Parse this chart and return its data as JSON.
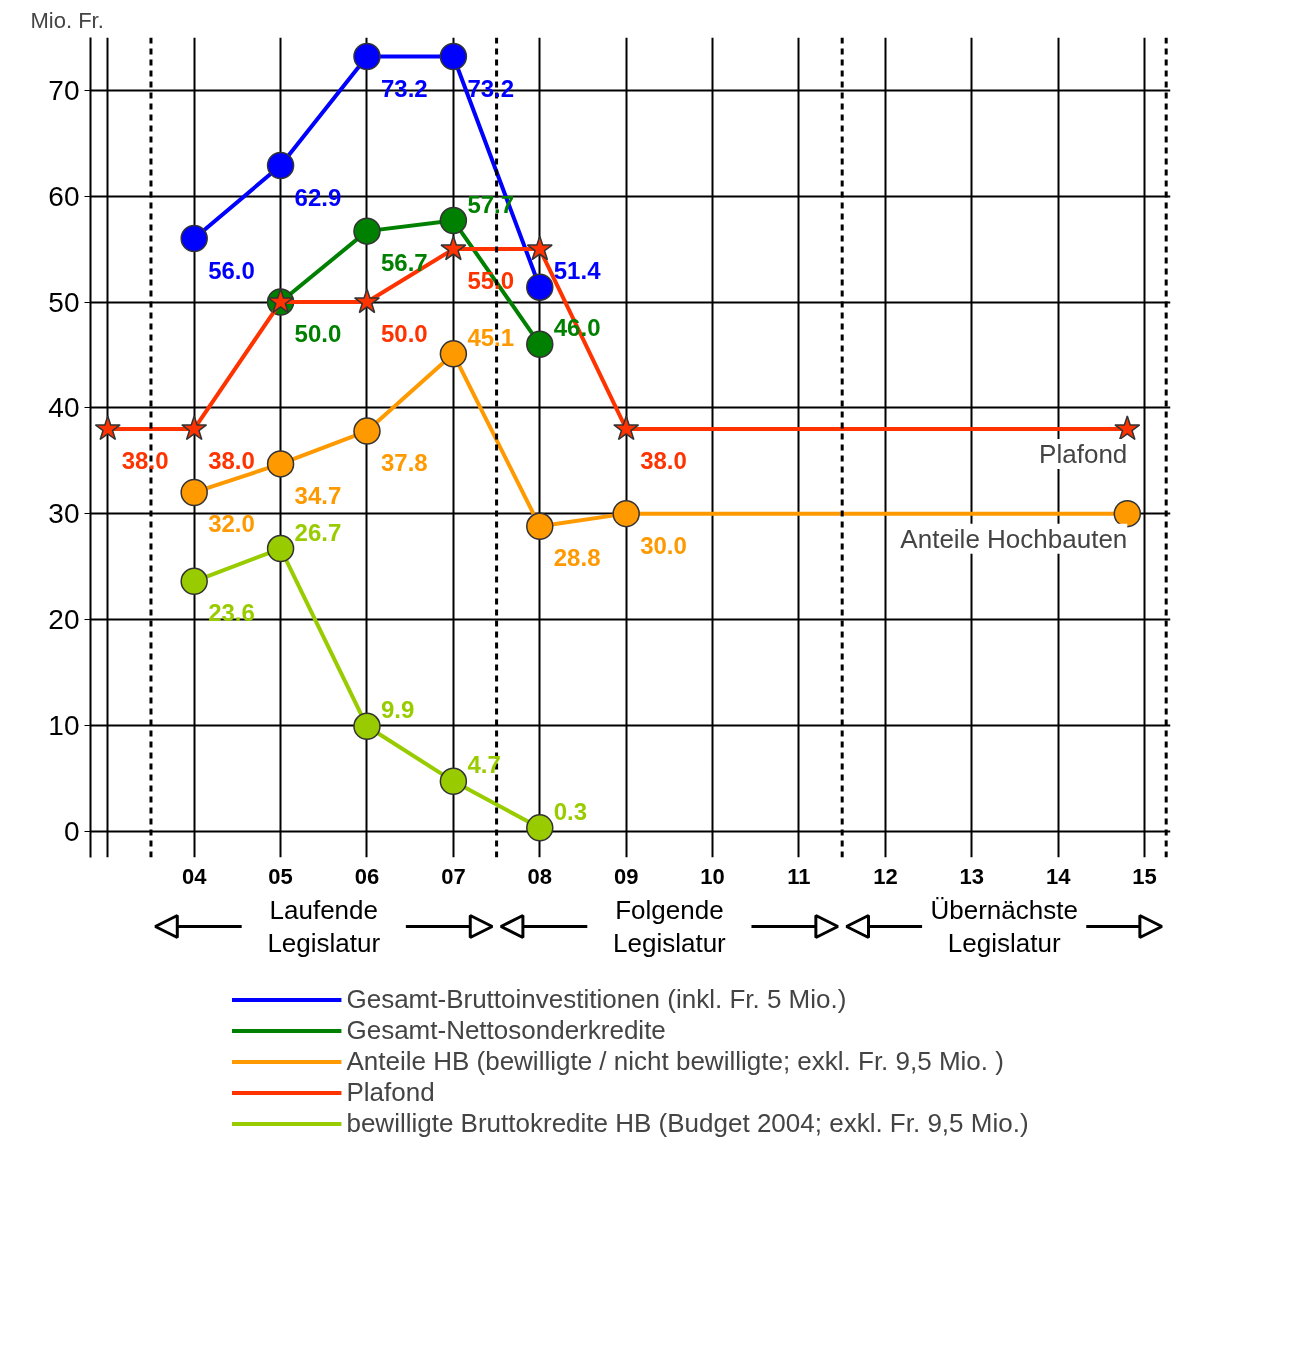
{
  "chart_data": {
    "type": "line",
    "ylabel": "Mio. Fr.",
    "xlim": [
      2.8,
      15.3
    ],
    "ylim": [
      -2.5,
      75
    ],
    "xticks": [
      {
        "value": 3,
        "label": null
      },
      {
        "value": 4,
        "label": "04"
      },
      {
        "value": 5,
        "label": "05"
      },
      {
        "value": 6,
        "label": "06"
      },
      {
        "value": 7,
        "label": "07"
      },
      {
        "value": 8,
        "label": "08"
      },
      {
        "value": 9,
        "label": "09"
      },
      {
        "value": 10,
        "label": "10"
      },
      {
        "value": 11,
        "label": "11"
      },
      {
        "value": 12,
        "label": "12"
      },
      {
        "value": 13,
        "label": "13"
      },
      {
        "value": 14,
        "label": "14"
      },
      {
        "value": 15,
        "label": "15"
      }
    ],
    "yticks": [
      0,
      10,
      20,
      30,
      40,
      50,
      60,
      70
    ],
    "grid": true,
    "legend": "bottom",
    "marker": "circle",
    "line_style": "solid",
    "series": [
      {
        "name": "Gesamt-Bruttoinvestitionen (inkl. Fr. 5 Mio.)",
        "color": "#0000ff",
        "x": [
          4,
          5,
          6,
          7,
          8
        ],
        "values": [
          56.0,
          62.9,
          73.2,
          73.2,
          51.4
        ],
        "value_labels": [
          "56.0",
          "62.9",
          "73.2",
          "73.2",
          "51.4"
        ]
      },
      {
        "name": "Gesamt-Nettosonderkredite",
        "color": "#008000",
        "x": [
          5,
          6,
          7,
          8
        ],
        "values": [
          50.0,
          56.7,
          57.7,
          46.0
        ],
        "value_labels": [
          "50.0",
          "56.7",
          "57.7",
          "46.0"
        ]
      },
      {
        "name": "Anteile HB (bewilligte / nicht bewilligte; exkl. Fr. 9,5 Mio. )",
        "color": "#ff9900",
        "x": [
          4,
          5,
          6,
          7,
          8,
          9,
          14.8
        ],
        "values": [
          32.0,
          34.7,
          37.8,
          45.1,
          28.8,
          30.0,
          30.0
        ],
        "value_labels": [
          "32.0",
          "34.7",
          "37.8",
          "45.1",
          "28.8",
          "30.0",
          null
        ]
      },
      {
        "name": "Plafond",
        "color": "#ff3300",
        "marker": "star",
        "x": [
          3,
          4,
          5,
          6,
          7,
          8,
          9,
          14.8
        ],
        "values": [
          38.0,
          38.0,
          50.0,
          50.0,
          55.0,
          55.0,
          38.0,
          38.0
        ],
        "value_labels": [
          "38.0",
          "38.0",
          null,
          "50.0",
          "55.0",
          null,
          "38.0",
          null
        ]
      },
      {
        "name": "bewilligte Bruttokredite HB (Budget 2004; exkl. Fr. 9,5 Mio.)",
        "color": "#99cc00",
        "x": [
          4,
          5,
          6,
          7,
          8
        ],
        "values": [
          23.6,
          26.7,
          9.9,
          4.7,
          0.3
        ],
        "value_labels": [
          "23.6",
          "26.7",
          "9.9",
          "4.7",
          "0.3"
        ]
      }
    ],
    "ref_lines": [
      {
        "axis": "x",
        "value": 3.5,
        "color": "#000000",
        "line_style": "dashed"
      },
      {
        "axis": "x",
        "value": 7.5,
        "color": "#000000",
        "line_style": "dashed"
      },
      {
        "axis": "x",
        "value": 11.5,
        "color": "#000000",
        "line_style": "dashed"
      },
      {
        "axis": "x",
        "value": 15.25,
        "color": "#000000",
        "line_style": "dashed"
      }
    ],
    "annotations": [
      {
        "text": "Plafond",
        "x": 14.8,
        "y": 38.0
      },
      {
        "text": "Anteile Hochbauten",
        "x": 14.8,
        "y": 30.0
      },
      "Laufende\nLegislatur",
      "Folgende\nLegislatur",
      "Übernächste\nLegislatur"
    ]
  }
}
